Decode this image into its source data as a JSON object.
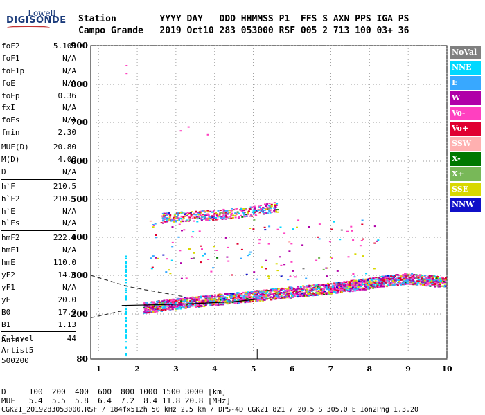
{
  "logo": {
    "top": "Lowell",
    "main": "DIGISONDE"
  },
  "header": {
    "row1": "Station        YYYY DAY   DDD HHMMSS P1  FFS S AXN PPS IGA PS",
    "row2": "Campo Grande   2019 Oct10 283 053000 RSF 005 2 713 100 03+ 36"
  },
  "params": {
    "group1": [
      {
        "name": "foF2",
        "value": "5.100"
      },
      {
        "name": "foF1",
        "value": "N/A"
      },
      {
        "name": "foF1p",
        "value": "N/A"
      },
      {
        "name": "foE",
        "value": "N/A"
      },
      {
        "name": "foEp",
        "value": "0.36"
      },
      {
        "name": "fxI",
        "value": "N/A"
      },
      {
        "name": "foEs",
        "value": "N/A"
      },
      {
        "name": "fmin",
        "value": "2.30"
      }
    ],
    "group2": [
      {
        "name": "MUF(D)",
        "value": "20.80"
      },
      {
        "name": "M(D)",
        "value": "4.08"
      },
      {
        "name": "D",
        "value": "N/A"
      }
    ],
    "group3": [
      {
        "name": "h`F",
        "value": "210.5"
      },
      {
        "name": "h`F2",
        "value": "210.5"
      },
      {
        "name": "h`E",
        "value": "N/A"
      },
      {
        "name": "h`Es",
        "value": "N/A"
      }
    ],
    "group4": [
      {
        "name": "hmF2",
        "value": "222.0"
      },
      {
        "name": "hmF1",
        "value": "N/A"
      },
      {
        "name": "hmE",
        "value": "110.0"
      },
      {
        "name": "yF2",
        "value": "14.6"
      },
      {
        "name": "yF1",
        "value": "N/A"
      },
      {
        "name": "yE",
        "value": "20.0"
      },
      {
        "name": "B0",
        "value": "17.9"
      },
      {
        "name": "B1",
        "value": "1.13"
      }
    ],
    "group5": [
      {
        "name": "C-level",
        "value": "44"
      }
    ]
  },
  "auto": {
    "line1": "Auto:",
    "line2": "Artist5",
    "line3": "500200"
  },
  "footer": {
    "d_row": "D     100  200  400  600  800 1000 1500 3000 [km]",
    "muf_row": "MUF   5.4  5.5  5.8  6.4  7.2  8.4 11.8 20.8 [MHz]",
    "info": "CGK21_2019283053000.RSF / 184fx512h 50 kHz 2.5 km / DPS-4D CGK21 821 / 20.5 S 305.0 E Ion2Png 1.3.20"
  },
  "legend": [
    {
      "label": "NoVal",
      "color": "#808080"
    },
    {
      "label": "NNE",
      "color": "#00d8ff"
    },
    {
      "label": "E",
      "color": "#38a8ff"
    },
    {
      "label": "W",
      "color": "#b000a8"
    },
    {
      "label": "Vo-",
      "color": "#ff40c0"
    },
    {
      "label": "Vo+",
      "color": "#e00030"
    },
    {
      "label": "SSW",
      "color": "#ffb0b0"
    },
    {
      "label": "X-",
      "color": "#007800"
    },
    {
      "label": "X+",
      "color": "#78b858"
    },
    {
      "label": "SSE",
      "color": "#d8d800"
    },
    {
      "label": "NNW",
      "color": "#1010c8"
    }
  ],
  "chart_data": {
    "type": "scatter",
    "x_ticks": [
      "1",
      "2",
      "3",
      "4",
      "5",
      "6",
      "7",
      "8",
      "9",
      "10"
    ],
    "y_ticks": [
      "80",
      "200",
      "300",
      "400",
      "500",
      "600",
      "700",
      "800",
      "900"
    ],
    "xlim": [
      0.8,
      10
    ],
    "y_axis": "virtual height, km (non-linear)",
    "fof2_marker": 5.1,
    "traces": [
      {
        "name": "F2 main trace",
        "x": [
          2.2,
          3.0,
          4.0,
          5.0,
          6.0,
          7.0,
          7.8,
          8.5,
          9.0,
          9.5,
          10.0
        ],
        "y": [
          215,
          225,
          235,
          245,
          255,
          265,
          275,
          285,
          290,
          285,
          280
        ]
      },
      {
        "name": "multiple trace",
        "x": [
          2.5,
          3.0,
          4.0,
          5.0,
          5.5
        ],
        "y": [
          450,
          455,
          460,
          470,
          480
        ]
      }
    ],
    "model_curves": {
      "solid": {
        "x": [
          1.6,
          2.5,
          3.5,
          4.5,
          5.1
        ],
        "y": [
          222,
          224,
          227,
          232,
          238
        ]
      },
      "dashed_lower": {
        "x": [
          0.8,
          1.6
        ],
        "y": [
          190,
          208
        ]
      },
      "dashed_upper": {
        "x": [
          0.8,
          1.8,
          3.2
        ],
        "y": [
          300,
          270,
          245
        ]
      }
    }
  }
}
